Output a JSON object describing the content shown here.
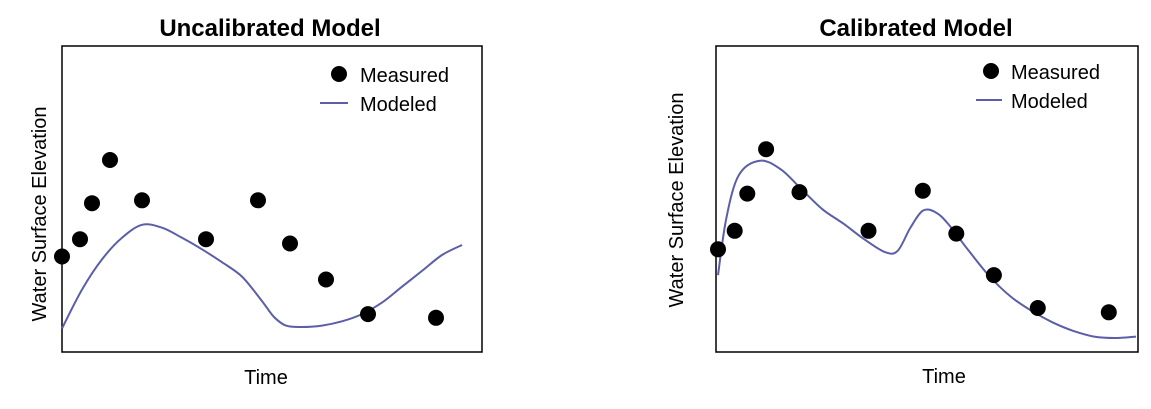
{
  "chart_data": [
    {
      "type": "scatter",
      "title": "Uncalibrated Model",
      "xlabel": "Time",
      "ylabel": "Water Surface Elevation",
      "xlim": [
        0,
        10
      ],
      "ylim": [
        0,
        10
      ],
      "legend": {
        "placement": "top-right",
        "entries": [
          {
            "label": "Measured",
            "marker": "dot"
          },
          {
            "label": "Modeled",
            "marker": "line"
          }
        ]
      },
      "series": [
        {
          "name": "Measured",
          "kind": "scatter",
          "x": [
            0.0,
            0.45,
            0.75,
            1.2,
            2.0,
            3.6,
            4.9,
            5.7,
            6.6,
            7.65,
            9.35
          ],
          "y": [
            2.9,
            3.5,
            4.75,
            6.25,
            4.85,
            3.5,
            4.85,
            3.35,
            2.1,
            0.9,
            0.77
          ]
        },
        {
          "name": "Modeled",
          "kind": "line",
          "x": [
            0.0,
            0.5,
            1.0,
            1.5,
            2.0,
            2.5,
            3.0,
            3.5,
            4.0,
            4.5,
            5.0,
            5.3,
            5.6,
            6.0,
            6.5,
            7.0,
            7.5,
            8.0,
            8.5,
            9.0,
            9.5,
            10.0
          ],
          "y": [
            0.4,
            1.75,
            2.8,
            3.55,
            4.0,
            3.9,
            3.55,
            3.15,
            2.7,
            2.2,
            1.35,
            0.8,
            0.5,
            0.45,
            0.5,
            0.65,
            0.9,
            1.3,
            1.85,
            2.4,
            2.95,
            3.3
          ]
        }
      ],
      "colors": {
        "measured": "#000000",
        "modeled": "#5b5ea8"
      },
      "grid": false
    },
    {
      "type": "scatter",
      "title": "Calibrated Model",
      "xlabel": "Time",
      "ylabel": "Water Surface Elevation",
      "xlim": [
        0,
        10
      ],
      "ylim": [
        0,
        10
      ],
      "legend": {
        "placement": "top-right",
        "entries": [
          {
            "label": "Measured",
            "marker": "dot"
          },
          {
            "label": "Modeled",
            "marker": "line"
          }
        ]
      },
      "series": [
        {
          "name": "Measured",
          "kind": "scatter",
          "x": [
            0.0,
            0.4,
            0.7,
            1.15,
            1.95,
            3.6,
            4.9,
            5.7,
            6.6,
            7.65,
            9.35
          ],
          "y": [
            3.1,
            3.75,
            5.05,
            6.6,
            5.1,
            3.75,
            5.15,
            3.65,
            2.2,
            1.05,
            0.9
          ]
        },
        {
          "name": "Modeled",
          "kind": "line",
          "x": [
            0.0,
            0.2,
            0.5,
            1.0,
            1.5,
            2.0,
            2.5,
            3.0,
            3.5,
            4.0,
            4.3,
            4.6,
            4.9,
            5.2,
            5.5,
            6.0,
            6.5,
            7.0,
            7.5,
            8.0,
            8.5,
            9.0,
            9.5,
            10.0
          ],
          "y": [
            2.2,
            4.2,
            5.7,
            6.2,
            5.9,
            5.2,
            4.5,
            4.0,
            3.45,
            3.0,
            3.05,
            3.85,
            4.45,
            4.4,
            4.0,
            3.05,
            2.15,
            1.45,
            0.95,
            0.55,
            0.25,
            0.05,
            0.0,
            0.05
          ]
        }
      ],
      "colors": {
        "measured": "#000000",
        "modeled": "#5b5ea8"
      },
      "grid": false
    }
  ]
}
